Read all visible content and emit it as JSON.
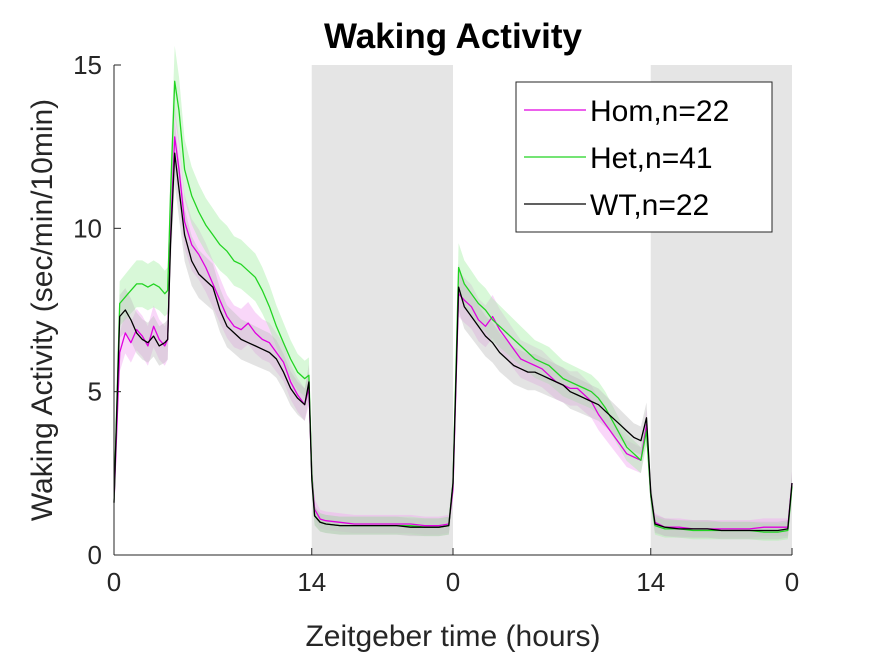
{
  "chart_data": {
    "type": "line",
    "title": "Waking Activity",
    "xlabel": "Zeitgeber time (hours)",
    "ylabel": "Waking Activity (sec/min/10min)",
    "x_ticks": [
      {
        "x": 0,
        "label": "0"
      },
      {
        "x": 14,
        "label": "14"
      },
      {
        "x": 24,
        "label": "0"
      },
      {
        "x": 38,
        "label": "14"
      },
      {
        "x": 48,
        "label": "0"
      }
    ],
    "y_ticks": [
      0,
      5,
      10,
      15
    ],
    "xlim": [
      0,
      48
    ],
    "ylim": [
      0,
      15
    ],
    "night_shading": [
      [
        14,
        24
      ],
      [
        38,
        48
      ]
    ],
    "shading_color": "#e5e5e5",
    "legend_position": "top-right",
    "series": [
      {
        "name": "Hom,n=22",
        "color": "#e000e0",
        "band_color": "#f2a6f2",
        "points": [
          [
            0,
            1.6
          ],
          [
            0.4,
            6.2
          ],
          [
            0.8,
            6.8
          ],
          [
            1.2,
            6.5
          ],
          [
            1.6,
            6.9
          ],
          [
            2.0,
            6.7
          ],
          [
            2.4,
            6.4
          ],
          [
            2.8,
            7.0
          ],
          [
            3.2,
            6.6
          ],
          [
            3.6,
            6.4
          ],
          [
            3.8,
            6.6
          ],
          [
            4.0,
            9.8
          ],
          [
            4.3,
            12.8
          ],
          [
            4.6,
            11.8
          ],
          [
            5.0,
            10.2
          ],
          [
            5.5,
            9.5
          ],
          [
            6.0,
            9.2
          ],
          [
            6.5,
            8.8
          ],
          [
            7.0,
            8.3
          ],
          [
            7.5,
            7.8
          ],
          [
            8.0,
            7.3
          ],
          [
            8.5,
            7.0
          ],
          [
            9.0,
            6.9
          ],
          [
            9.5,
            7.1
          ],
          [
            10.0,
            6.8
          ],
          [
            10.5,
            6.6
          ],
          [
            11.0,
            6.5
          ],
          [
            11.5,
            6.2
          ],
          [
            12.0,
            5.9
          ],
          [
            12.5,
            5.3
          ],
          [
            13.0,
            4.9
          ],
          [
            13.5,
            4.6
          ],
          [
            13.8,
            5.1
          ],
          [
            14.0,
            2.5
          ],
          [
            14.2,
            1.4
          ],
          [
            14.6,
            1.1
          ],
          [
            15,
            1.05
          ],
          [
            16,
            1.0
          ],
          [
            17,
            0.95
          ],
          [
            18,
            0.95
          ],
          [
            19,
            0.95
          ],
          [
            20,
            0.95
          ],
          [
            21,
            0.95
          ],
          [
            22,
            0.9
          ],
          [
            23,
            0.9
          ],
          [
            23.7,
            0.95
          ],
          [
            24,
            2.0
          ],
          [
            24.4,
            8.0
          ],
          [
            24.8,
            7.8
          ],
          [
            25.3,
            7.6
          ],
          [
            25.8,
            7.2
          ],
          [
            26.3,
            7.0
          ],
          [
            26.8,
            7.3
          ],
          [
            27.3,
            6.9
          ],
          [
            27.8,
            6.6
          ],
          [
            28.3,
            6.3
          ],
          [
            28.8,
            6.0
          ],
          [
            29.3,
            5.9
          ],
          [
            29.8,
            5.8
          ],
          [
            30.3,
            5.7
          ],
          [
            30.8,
            5.5
          ],
          [
            31.3,
            5.3
          ],
          [
            31.8,
            5.2
          ],
          [
            32.3,
            5.1
          ],
          [
            32.8,
            5.1
          ],
          [
            33.3,
            4.9
          ],
          [
            33.8,
            4.7
          ],
          [
            34.3,
            4.3
          ],
          [
            34.8,
            4.0
          ],
          [
            35.3,
            3.7
          ],
          [
            35.8,
            3.4
          ],
          [
            36.3,
            3.1
          ],
          [
            36.8,
            3.0
          ],
          [
            37.3,
            2.9
          ],
          [
            37.7,
            4.0
          ],
          [
            38.0,
            1.8
          ],
          [
            38.3,
            1.0
          ],
          [
            39,
            0.85
          ],
          [
            40,
            0.85
          ],
          [
            41,
            0.8
          ],
          [
            42,
            0.8
          ],
          [
            43,
            0.8
          ],
          [
            44,
            0.8
          ],
          [
            45,
            0.8
          ],
          [
            46,
            0.85
          ],
          [
            47,
            0.85
          ],
          [
            47.7,
            0.85
          ],
          [
            48,
            2.2
          ]
        ]
      },
      {
        "name": "Het,n=41",
        "color": "#22d422",
        "band_color": "#a8f0a8",
        "points": [
          [
            0,
            1.6
          ],
          [
            0.4,
            7.7
          ],
          [
            0.8,
            7.9
          ],
          [
            1.2,
            8.1
          ],
          [
            1.6,
            8.3
          ],
          [
            2.0,
            8.3
          ],
          [
            2.4,
            8.2
          ],
          [
            2.8,
            8.3
          ],
          [
            3.2,
            8.2
          ],
          [
            3.6,
            8.0
          ],
          [
            3.8,
            8.1
          ],
          [
            4.0,
            11.0
          ],
          [
            4.3,
            14.5
          ],
          [
            4.6,
            13.6
          ],
          [
            5.0,
            11.8
          ],
          [
            5.5,
            11.0
          ],
          [
            6.0,
            10.5
          ],
          [
            6.5,
            10.1
          ],
          [
            7.0,
            9.8
          ],
          [
            7.5,
            9.5
          ],
          [
            8.0,
            9.3
          ],
          [
            8.5,
            9.0
          ],
          [
            9.0,
            8.9
          ],
          [
            9.5,
            8.7
          ],
          [
            10.0,
            8.5
          ],
          [
            10.5,
            8.1
          ],
          [
            11.0,
            7.6
          ],
          [
            11.5,
            7.0
          ],
          [
            12.0,
            6.5
          ],
          [
            12.5,
            6.0
          ],
          [
            13.0,
            5.6
          ],
          [
            13.5,
            5.4
          ],
          [
            13.8,
            5.5
          ],
          [
            14.0,
            2.5
          ],
          [
            14.2,
            1.2
          ],
          [
            14.6,
            1.0
          ],
          [
            15,
            0.95
          ],
          [
            16,
            0.9
          ],
          [
            17,
            0.9
          ],
          [
            18,
            0.9
          ],
          [
            19,
            0.9
          ],
          [
            20,
            0.9
          ],
          [
            21,
            0.9
          ],
          [
            22,
            0.85
          ],
          [
            23,
            0.85
          ],
          [
            23.7,
            0.9
          ],
          [
            24,
            2.2
          ],
          [
            24.4,
            8.8
          ],
          [
            24.8,
            8.3
          ],
          [
            25.3,
            8.0
          ],
          [
            25.8,
            7.7
          ],
          [
            26.3,
            7.5
          ],
          [
            26.8,
            7.2
          ],
          [
            27.3,
            7.0
          ],
          [
            27.8,
            6.8
          ],
          [
            28.3,
            6.6
          ],
          [
            28.8,
            6.4
          ],
          [
            29.3,
            6.2
          ],
          [
            29.8,
            6.0
          ],
          [
            30.3,
            5.9
          ],
          [
            30.8,
            5.8
          ],
          [
            31.3,
            5.6
          ],
          [
            31.8,
            5.4
          ],
          [
            32.3,
            5.3
          ],
          [
            32.8,
            5.2
          ],
          [
            33.3,
            5.1
          ],
          [
            33.8,
            5.0
          ],
          [
            34.3,
            4.8
          ],
          [
            34.8,
            4.5
          ],
          [
            35.3,
            4.1
          ],
          [
            35.8,
            3.7
          ],
          [
            36.3,
            3.3
          ],
          [
            36.8,
            3.1
          ],
          [
            37.3,
            2.9
          ],
          [
            37.7,
            3.8
          ],
          [
            38.0,
            1.8
          ],
          [
            38.3,
            0.9
          ],
          [
            39,
            0.8
          ],
          [
            40,
            0.8
          ],
          [
            41,
            0.75
          ],
          [
            42,
            0.75
          ],
          [
            43,
            0.75
          ],
          [
            44,
            0.75
          ],
          [
            45,
            0.75
          ],
          [
            46,
            0.7
          ],
          [
            47,
            0.7
          ],
          [
            47.7,
            0.75
          ],
          [
            48,
            2.1
          ]
        ]
      },
      {
        "name": "WT,n=22",
        "color": "#000000",
        "band_color": "#c0c0c0",
        "points": [
          [
            0,
            1.6
          ],
          [
            0.4,
            7.3
          ],
          [
            0.8,
            7.5
          ],
          [
            1.2,
            7.2
          ],
          [
            1.6,
            6.8
          ],
          [
            2.0,
            6.6
          ],
          [
            2.4,
            6.5
          ],
          [
            2.8,
            6.7
          ],
          [
            3.2,
            6.4
          ],
          [
            3.6,
            6.5
          ],
          [
            3.8,
            6.6
          ],
          [
            4.0,
            9.5
          ],
          [
            4.3,
            12.3
          ],
          [
            4.6,
            11.2
          ],
          [
            5.0,
            9.8
          ],
          [
            5.5,
            9.0
          ],
          [
            6.0,
            8.6
          ],
          [
            6.5,
            8.4
          ],
          [
            7.0,
            8.2
          ],
          [
            7.5,
            7.5
          ],
          [
            8.0,
            7.0
          ],
          [
            8.5,
            6.8
          ],
          [
            9.0,
            6.6
          ],
          [
            9.5,
            6.5
          ],
          [
            10.0,
            6.4
          ],
          [
            10.5,
            6.3
          ],
          [
            11.0,
            6.2
          ],
          [
            11.5,
            6.0
          ],
          [
            12.0,
            5.6
          ],
          [
            12.5,
            5.1
          ],
          [
            13.0,
            4.8
          ],
          [
            13.5,
            4.6
          ],
          [
            13.8,
            5.3
          ],
          [
            14.0,
            2.3
          ],
          [
            14.2,
            1.2
          ],
          [
            14.6,
            1.0
          ],
          [
            15,
            0.95
          ],
          [
            16,
            0.9
          ],
          [
            17,
            0.9
          ],
          [
            18,
            0.9
          ],
          [
            19,
            0.9
          ],
          [
            20,
            0.9
          ],
          [
            21,
            0.85
          ],
          [
            22,
            0.85
          ],
          [
            23,
            0.85
          ],
          [
            23.7,
            0.9
          ],
          [
            24,
            2.2
          ],
          [
            24.4,
            8.2
          ],
          [
            24.8,
            7.6
          ],
          [
            25.3,
            7.3
          ],
          [
            25.8,
            7.0
          ],
          [
            26.3,
            6.7
          ],
          [
            26.8,
            6.5
          ],
          [
            27.3,
            6.2
          ],
          [
            27.8,
            6.0
          ],
          [
            28.3,
            5.8
          ],
          [
            28.8,
            5.7
          ],
          [
            29.3,
            5.6
          ],
          [
            29.8,
            5.6
          ],
          [
            30.3,
            5.5
          ],
          [
            30.8,
            5.4
          ],
          [
            31.3,
            5.3
          ],
          [
            31.8,
            5.2
          ],
          [
            32.3,
            5.0
          ],
          [
            32.8,
            4.9
          ],
          [
            33.3,
            4.8
          ],
          [
            33.8,
            4.7
          ],
          [
            34.3,
            4.6
          ],
          [
            34.8,
            4.4
          ],
          [
            35.3,
            4.2
          ],
          [
            35.8,
            4.0
          ],
          [
            36.3,
            3.8
          ],
          [
            36.8,
            3.6
          ],
          [
            37.3,
            3.5
          ],
          [
            37.7,
            4.2
          ],
          [
            38.0,
            1.9
          ],
          [
            38.3,
            0.95
          ],
          [
            39,
            0.85
          ],
          [
            40,
            0.8
          ],
          [
            41,
            0.8
          ],
          [
            42,
            0.8
          ],
          [
            43,
            0.75
          ],
          [
            44,
            0.75
          ],
          [
            45,
            0.75
          ],
          [
            46,
            0.75
          ],
          [
            47,
            0.75
          ],
          [
            47.7,
            0.8
          ],
          [
            48,
            2.2
          ]
        ]
      }
    ]
  }
}
